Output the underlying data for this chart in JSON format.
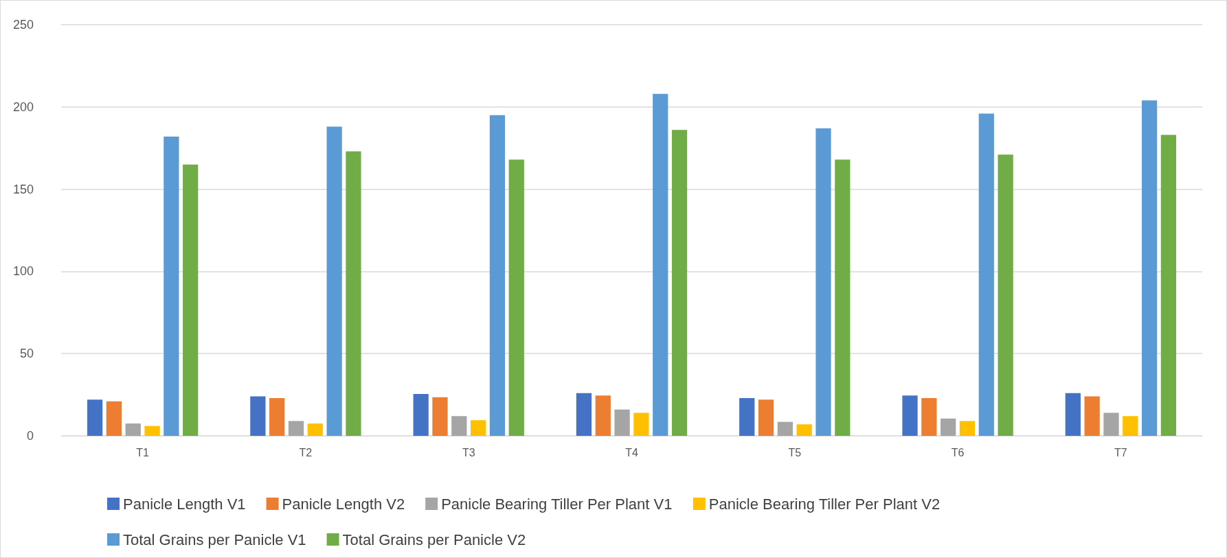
{
  "chart_data": {
    "type": "bar",
    "categories": [
      "T1",
      "T2",
      "T3",
      "T4",
      "T5",
      "T6",
      "T7"
    ],
    "series": [
      {
        "name": "Panicle Length V1",
        "color": "#4472c4",
        "values": [
          22,
          24,
          25.5,
          26,
          23,
          24.5,
          26
        ]
      },
      {
        "name": "Panicle Length V2",
        "color": "#ed7d31",
        "values": [
          21,
          23,
          23.5,
          24.5,
          22,
          23,
          24
        ]
      },
      {
        "name": "Panicle Bearing Tiller Per Plant V1",
        "color": "#a5a5a5",
        "values": [
          7.5,
          9,
          12,
          16,
          8.5,
          10.5,
          14
        ]
      },
      {
        "name": "Panicle Bearing Tiller Per Plant V2",
        "color": "#ffc000",
        "values": [
          6,
          7.5,
          9.5,
          14,
          7,
          9,
          12
        ]
      },
      {
        "name": "Total Grains per Panicle V1",
        "color": "#5b9bd5",
        "values": [
          182,
          188,
          195,
          208,
          187,
          196,
          204
        ]
      },
      {
        "name": "Total Grains per Panicle V2",
        "color": "#70ad47",
        "values": [
          165,
          173,
          168,
          186,
          168,
          171,
          183
        ]
      }
    ],
    "ylim": [
      0,
      250
    ],
    "yticks": [
      0,
      50,
      100,
      150,
      200,
      250
    ],
    "grid": "y",
    "legend": "bottom"
  }
}
